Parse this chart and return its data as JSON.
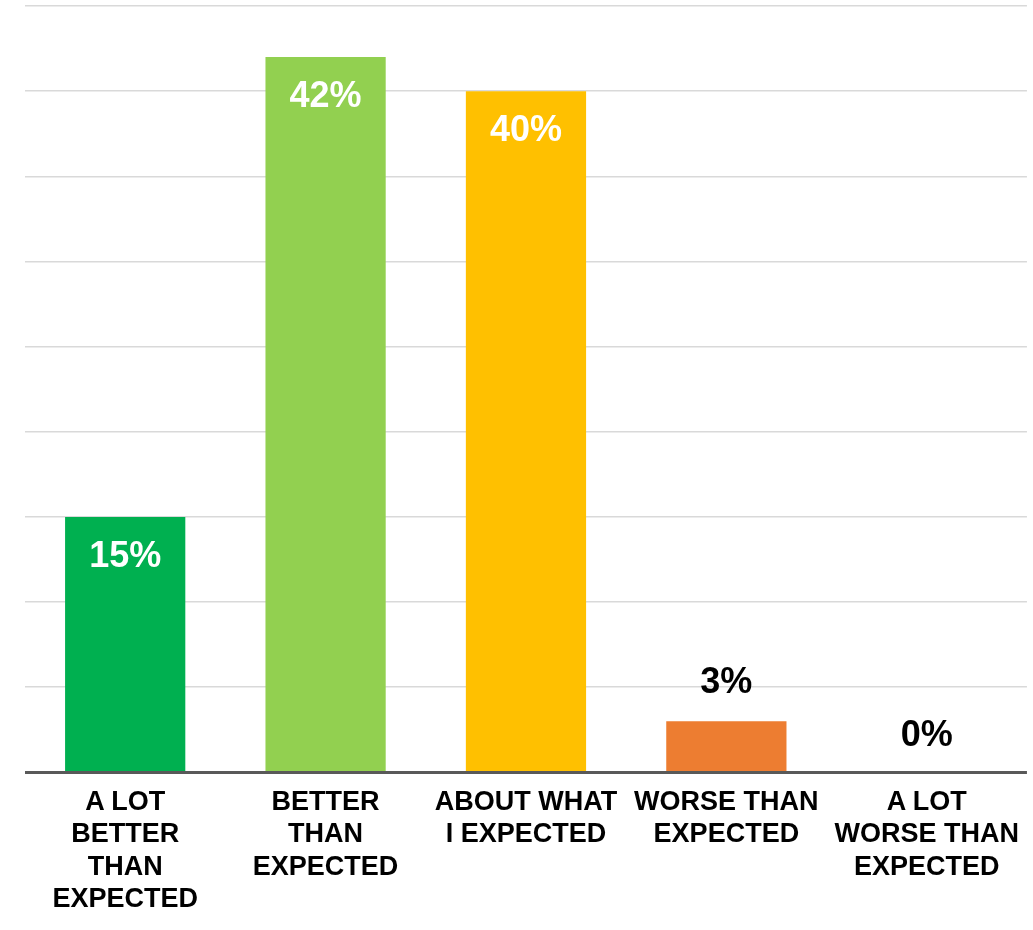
{
  "chart_data": {
    "type": "bar",
    "categories": [
      "A LOT BETTER THAN EXPECTED",
      "BETTER THAN EXPECTED",
      "ABOUT WHAT I EXPECTED",
      "WORSE THAN EXPECTED",
      "A LOT WORSE THAN EXPECTED"
    ],
    "values": [
      15,
      42,
      40,
      3,
      0
    ],
    "colors": [
      "#00b050",
      "#92d050",
      "#ffc000",
      "#ed7d31",
      "#c00000"
    ],
    "value_labels": [
      "15%",
      "42%",
      "40%",
      "3%",
      "0%"
    ],
    "ylim": [
      0,
      45
    ],
    "yticks": [
      0,
      {
        "value": 5,
        "label": null
      },
      {
        "value": 10,
        "label": null
      },
      {
        "value": 15,
        "label": null
      },
      {
        "value": 20,
        "label": null
      },
      {
        "value": 25,
        "label": null
      },
      {
        "value": 30,
        "label": null
      },
      {
        "value": 35,
        "label": null
      },
      {
        "value": 40,
        "label": null
      },
      {
        "value": 45,
        "label": null
      }
    ],
    "grid": "y",
    "legend": false,
    "tick_labels": "x"
  }
}
